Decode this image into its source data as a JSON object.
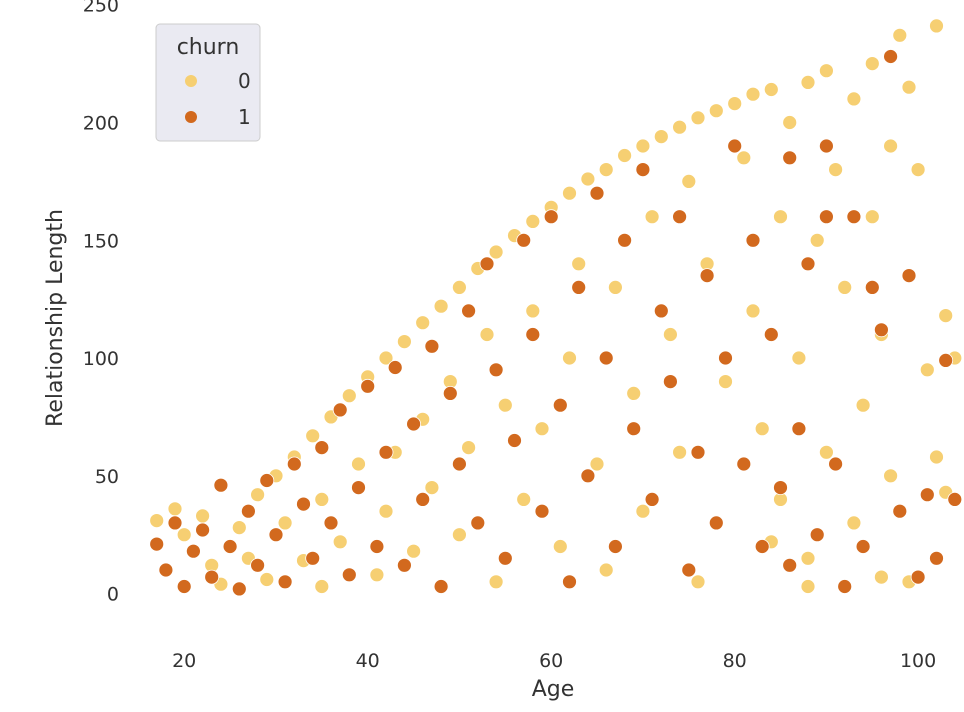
{
  "chart_data": {
    "type": "scatter",
    "title": "",
    "xlabel": "Age",
    "ylabel": "Relationship Length",
    "xlim": [
      13,
      105
    ],
    "ylim": [
      -18,
      252
    ],
    "xticks": [
      20,
      40,
      60,
      80,
      100
    ],
    "yticks": [
      0,
      50,
      100,
      150,
      200,
      250
    ],
    "grid": false,
    "legend": {
      "title": "churn",
      "placement": "top-left",
      "entries": [
        {
          "label": "0",
          "color": "#f6cf72"
        },
        {
          "label": "1",
          "color": "#d2691e"
        }
      ]
    },
    "series": [
      {
        "name": "0",
        "color": "#f6cf72",
        "points": [
          [
            17,
            31
          ],
          [
            19,
            36
          ],
          [
            20,
            25
          ],
          [
            22,
            33
          ],
          [
            23,
            12
          ],
          [
            24,
            4
          ],
          [
            26,
            28
          ],
          [
            27,
            15
          ],
          [
            28,
            42
          ],
          [
            29,
            6
          ],
          [
            30,
            50
          ],
          [
            31,
            30
          ],
          [
            32,
            58
          ],
          [
            33,
            14
          ],
          [
            34,
            67
          ],
          [
            35,
            40
          ],
          [
            35,
            3
          ],
          [
            36,
            75
          ],
          [
            37,
            22
          ],
          [
            38,
            84
          ],
          [
            39,
            55
          ],
          [
            40,
            92
          ],
          [
            41,
            8
          ],
          [
            42,
            100
          ],
          [
            42,
            35
          ],
          [
            43,
            60
          ],
          [
            44,
            107
          ],
          [
            45,
            18
          ],
          [
            46,
            115
          ],
          [
            46,
            74
          ],
          [
            47,
            45
          ],
          [
            48,
            122
          ],
          [
            49,
            90
          ],
          [
            50,
            130
          ],
          [
            50,
            25
          ],
          [
            51,
            62
          ],
          [
            52,
            138
          ],
          [
            53,
            110
          ],
          [
            54,
            145
          ],
          [
            54,
            5
          ],
          [
            55,
            80
          ],
          [
            56,
            152
          ],
          [
            57,
            40
          ],
          [
            58,
            158
          ],
          [
            58,
            120
          ],
          [
            59,
            70
          ],
          [
            60,
            164
          ],
          [
            61,
            20
          ],
          [
            62,
            170
          ],
          [
            62,
            100
          ],
          [
            63,
            140
          ],
          [
            64,
            176
          ],
          [
            65,
            55
          ],
          [
            66,
            180
          ],
          [
            66,
            10
          ],
          [
            67,
            130
          ],
          [
            68,
            186
          ],
          [
            69,
            85
          ],
          [
            70,
            190
          ],
          [
            70,
            35
          ],
          [
            71,
            160
          ],
          [
            72,
            194
          ],
          [
            73,
            110
          ],
          [
            74,
            198
          ],
          [
            74,
            60
          ],
          [
            75,
            175
          ],
          [
            76,
            202
          ],
          [
            77,
            140
          ],
          [
            78,
            205
          ],
          [
            78,
            30
          ],
          [
            79,
            90
          ],
          [
            80,
            208
          ],
          [
            81,
            185
          ],
          [
            82,
            212
          ],
          [
            82,
            120
          ],
          [
            83,
            70
          ],
          [
            84,
            214
          ],
          [
            85,
            160
          ],
          [
            85,
            40
          ],
          [
            86,
            200
          ],
          [
            87,
            100
          ],
          [
            88,
            217
          ],
          [
            88,
            15
          ],
          [
            89,
            150
          ],
          [
            90,
            222
          ],
          [
            90,
            60
          ],
          [
            91,
            180
          ],
          [
            92,
            130
          ],
          [
            93,
            210
          ],
          [
            93,
            30
          ],
          [
            94,
            80
          ],
          [
            95,
            225
          ],
          [
            95,
            160
          ],
          [
            96,
            110
          ],
          [
            97,
            190
          ],
          [
            97,
            50
          ],
          [
            98,
            237
          ],
          [
            99,
            215
          ],
          [
            100,
            180
          ],
          [
            101,
            95
          ],
          [
            102,
            241
          ],
          [
            102,
            58
          ],
          [
            103,
            118
          ],
          [
            103,
            43
          ],
          [
            104,
            100
          ],
          [
            99,
            5
          ],
          [
            96,
            7
          ],
          [
            88,
            3
          ],
          [
            84,
            22
          ],
          [
            76,
            5
          ]
        ]
      },
      {
        "name": "1",
        "color": "#d2691e",
        "points": [
          [
            17,
            21
          ],
          [
            18,
            10
          ],
          [
            19,
            30
          ],
          [
            20,
            3
          ],
          [
            21,
            18
          ],
          [
            22,
            27
          ],
          [
            23,
            7
          ],
          [
            24,
            46
          ],
          [
            25,
            20
          ],
          [
            26,
            2
          ],
          [
            27,
            35
          ],
          [
            28,
            12
          ],
          [
            29,
            48
          ],
          [
            30,
            25
          ],
          [
            31,
            5
          ],
          [
            32,
            55
          ],
          [
            33,
            38
          ],
          [
            34,
            15
          ],
          [
            35,
            62
          ],
          [
            36,
            30
          ],
          [
            37,
            78
          ],
          [
            38,
            8
          ],
          [
            39,
            45
          ],
          [
            40,
            88
          ],
          [
            41,
            20
          ],
          [
            42,
            60
          ],
          [
            43,
            96
          ],
          [
            44,
            12
          ],
          [
            45,
            72
          ],
          [
            46,
            40
          ],
          [
            47,
            105
          ],
          [
            48,
            3
          ],
          [
            49,
            85
          ],
          [
            50,
            55
          ],
          [
            51,
            120
          ],
          [
            52,
            30
          ],
          [
            53,
            140
          ],
          [
            54,
            95
          ],
          [
            55,
            15
          ],
          [
            56,
            65
          ],
          [
            57,
            150
          ],
          [
            58,
            110
          ],
          [
            59,
            35
          ],
          [
            60,
            160
          ],
          [
            61,
            80
          ],
          [
            62,
            5
          ],
          [
            63,
            130
          ],
          [
            64,
            50
          ],
          [
            65,
            170
          ],
          [
            66,
            100
          ],
          [
            67,
            20
          ],
          [
            68,
            150
          ],
          [
            69,
            70
          ],
          [
            70,
            180
          ],
          [
            71,
            40
          ],
          [
            72,
            120
          ],
          [
            73,
            90
          ],
          [
            74,
            160
          ],
          [
            75,
            10
          ],
          [
            76,
            60
          ],
          [
            77,
            135
          ],
          [
            78,
            30
          ],
          [
            79,
            100
          ],
          [
            80,
            190
          ],
          [
            81,
            55
          ],
          [
            82,
            150
          ],
          [
            83,
            20
          ],
          [
            84,
            110
          ],
          [
            85,
            45
          ],
          [
            86,
            185
          ],
          [
            87,
            70
          ],
          [
            88,
            140
          ],
          [
            89,
            25
          ],
          [
            90,
            190
          ],
          [
            91,
            55
          ],
          [
            92,
            3
          ],
          [
            93,
            160
          ],
          [
            94,
            20
          ],
          [
            95,
            130
          ],
          [
            96,
            112
          ],
          [
            97,
            228
          ],
          [
            98,
            35
          ],
          [
            99,
            135
          ],
          [
            100,
            7
          ],
          [
            101,
            42
          ],
          [
            102,
            15
          ],
          [
            103,
            99
          ],
          [
            104,
            40
          ],
          [
            90,
            160
          ],
          [
            86,
            12
          ]
        ]
      }
    ]
  }
}
